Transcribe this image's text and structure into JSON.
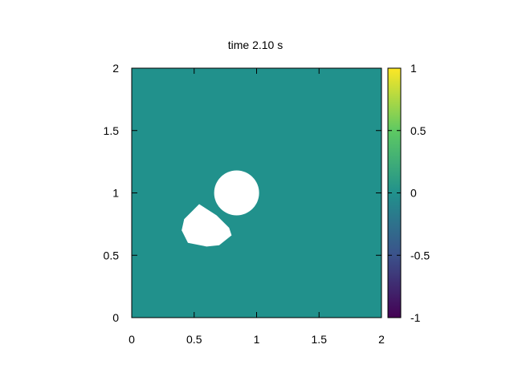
{
  "chart_data": {
    "type": "heatmap",
    "title": "time 2.10 s",
    "xlabel": "",
    "ylabel": "",
    "xlim": [
      0,
      2
    ],
    "ylim": [
      0,
      2
    ],
    "x_ticks": [
      0,
      0.5,
      1,
      1.5,
      2
    ],
    "y_ticks": [
      0,
      0.5,
      1,
      1.5,
      2
    ],
    "x_tick_labels": [
      "0",
      "0.5",
      "1",
      "1.5",
      "2"
    ],
    "y_tick_labels": [
      "0",
      "0.5",
      "1",
      "1.5",
      "2"
    ],
    "field_value": 0,
    "field_color": "#21918c",
    "void_color": "#ffffff",
    "void_regions": [
      {
        "shape": "circle",
        "cx": 0.84,
        "cy": 1.0,
        "r": 0.18
      },
      {
        "shape": "polygon",
        "points": [
          [
            0.54,
            0.91
          ],
          [
            0.68,
            0.82
          ],
          [
            0.78,
            0.72
          ],
          [
            0.8,
            0.66
          ],
          [
            0.7,
            0.58
          ],
          [
            0.6,
            0.57
          ],
          [
            0.45,
            0.6
          ],
          [
            0.4,
            0.7
          ],
          [
            0.42,
            0.79
          ]
        ]
      }
    ],
    "colorbar": {
      "min": -1,
      "max": 1,
      "ticks": [
        -1,
        -0.5,
        0,
        0.5,
        1
      ],
      "tick_labels": [
        "-1",
        "-0.5",
        "0",
        "0.5",
        "1"
      ],
      "colormap": "viridis",
      "stops": [
        "#440154",
        "#3b528b",
        "#21918c",
        "#5ec962",
        "#fde725"
      ]
    },
    "grid": false,
    "legend": "none"
  }
}
